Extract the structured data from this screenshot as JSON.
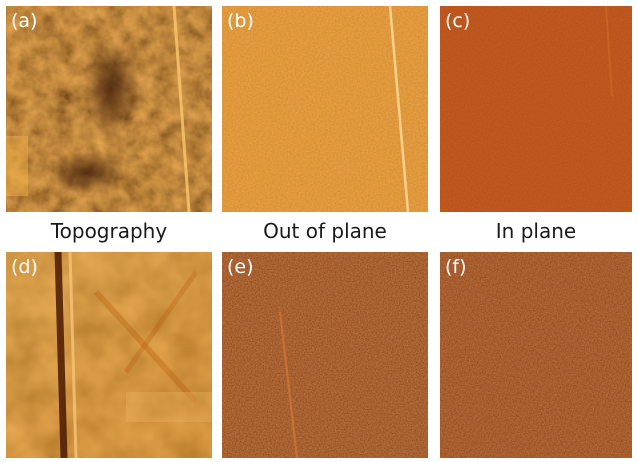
{
  "panels": [
    {
      "id": "a",
      "label": "(a)",
      "base": "#c45a08",
      "line": "#f7c46a"
    },
    {
      "id": "b",
      "label": "(b)",
      "base": "#e0861f",
      "line": "#fbd792"
    },
    {
      "id": "c",
      "label": "(c)",
      "base": "#b3400a",
      "line": "#d26a2a"
    },
    {
      "id": "d",
      "label": "(d)",
      "base": "#e39430",
      "line": "#4a1a02"
    },
    {
      "id": "e",
      "label": "(e)",
      "base": "#7f2608",
      "line": "#d57a35"
    },
    {
      "id": "f",
      "label": "(f)",
      "base": "#8a2c0a",
      "line": "#a33c12"
    }
  ],
  "captions": {
    "top_left": "Topography",
    "top_middle": "Out of plane",
    "top_right": "In plane"
  }
}
